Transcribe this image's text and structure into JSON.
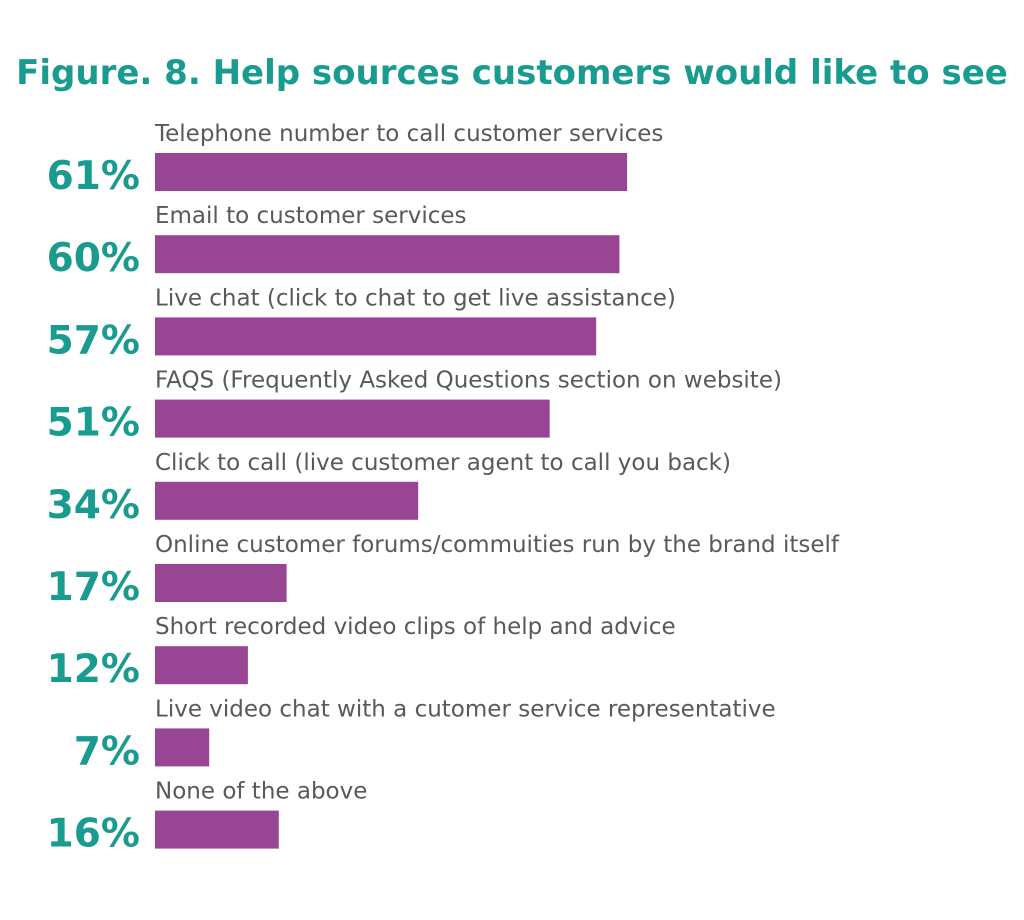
{
  "chart_data": {
    "type": "bar",
    "orientation": "horizontal",
    "title": "Figure. 8. Help sources customers would like to see",
    "categories": [
      "Telephone number to call customer services",
      "Email to customer services",
      "Live chat (click to chat to get live assistance)",
      "FAQS (Frequently Asked Questions section on website)",
      "Click to call (live customer agent to call you back)",
      "Online customer forums/commuities run by the brand itself",
      "Short recorded video clips of help and advice",
      "Live video chat with a cutomer service representative",
      "None of the above"
    ],
    "values": [
      61,
      60,
      57,
      51,
      34,
      17,
      12,
      7,
      16
    ],
    "value_labels": [
      "61%",
      "60%",
      "57%",
      "51%",
      "34%",
      "17%",
      "12%",
      "7%",
      "16%"
    ],
    "unit": "%",
    "xlim": [
      0,
      100
    ],
    "grid": false,
    "legend": "none"
  },
  "colors": {
    "title": "#1a9b8f",
    "value_label": "#1a9b8f",
    "category_label": "#595959",
    "bar": "#984594",
    "background": "#ffffff"
  }
}
